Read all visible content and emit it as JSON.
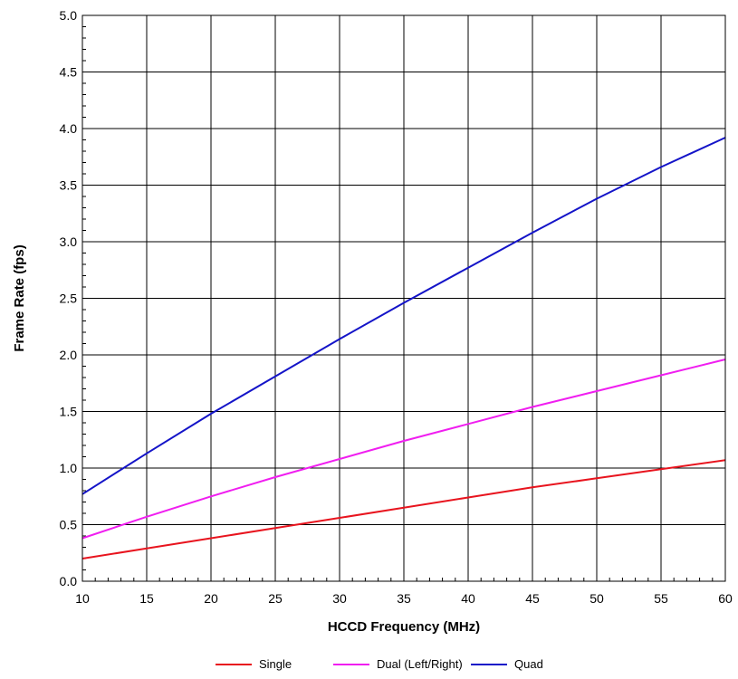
{
  "chart_data": {
    "type": "line",
    "title": "",
    "xlabel": "HCCD Frequency (MHz)",
    "ylabel": "Frame Rate (fps)",
    "xlim": [
      10,
      60
    ],
    "ylim": [
      0,
      5
    ],
    "grid": true,
    "legend_position": "bottom",
    "x_ticks": [
      "10",
      "15",
      "20",
      "25",
      "30",
      "35",
      "40",
      "45",
      "50",
      "55",
      "60"
    ],
    "y_ticks": [
      "0.0",
      "0.5",
      "1.0",
      "1.5",
      "2.0",
      "2.5",
      "3.0",
      "3.5",
      "4.0",
      "4.5",
      "5.0"
    ],
    "x": [
      10,
      15,
      20,
      25,
      30,
      35,
      40,
      45,
      50,
      55,
      60
    ],
    "series": [
      {
        "name": "Single",
        "color": "#e8141e",
        "values": [
          0.2,
          0.29,
          0.38,
          0.47,
          0.56,
          0.65,
          0.74,
          0.83,
          0.91,
          0.99,
          1.07
        ]
      },
      {
        "name": "Dual (Left/Right)",
        "color": "#f01ef0",
        "values": [
          0.38,
          0.57,
          0.75,
          0.92,
          1.08,
          1.24,
          1.39,
          1.54,
          1.68,
          1.82,
          1.96
        ]
      },
      {
        "name": "Quad",
        "color": "#1414c8",
        "values": [
          0.77,
          1.13,
          1.48,
          1.81,
          2.14,
          2.46,
          2.77,
          3.08,
          3.38,
          3.66,
          3.92
        ]
      }
    ]
  }
}
